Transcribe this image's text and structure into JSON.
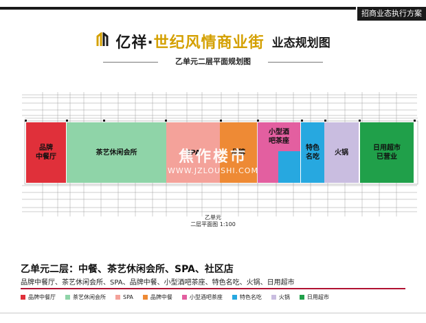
{
  "header": {
    "tag": "招商业态执行方案",
    "brand_prefix": "亿祥·",
    "brand_name": "世纪风情商业街",
    "brand_plan": "业态规划图",
    "subtitle": "乙单元二层平面规划图"
  },
  "plan": {
    "zones": [
      {
        "label": "品牌\n中餐厅",
        "color": "#e0303a"
      },
      {
        "label": "茶艺休闲会所",
        "color": "#8fd4a8"
      },
      {
        "label": "SPA",
        "color": "#f4a29a"
      },
      {
        "label": "品牌",
        "color": "#ee8a35"
      },
      {
        "label": "小型酒\n吧茶座",
        "color": "#e35fa0"
      },
      {
        "label": "特色\n名吃",
        "color": "#27a8e0"
      },
      {
        "label": "火锅",
        "color": "#c9bde0"
      },
      {
        "label": "日用超市\n已营业",
        "color": "#20a04a"
      }
    ],
    "watermark_cn": "焦作楼市",
    "watermark_en": "WWW.JZLOUSHI.COM",
    "caption_unit": "乙单元",
    "caption_plan": "二层平面图 1:100"
  },
  "summary": {
    "title": "乙单元二层：中餐、茶艺休闲会所、SPA、社区店",
    "list": "品牌中餐厅、茶艺休闲会所、SPA、品牌中餐、小型酒吧茶座、特色名吃、火锅、日用超市"
  },
  "legend": [
    {
      "label": "品牌中餐厅",
      "color": "#e0303a"
    },
    {
      "label": "茶艺休闲会所",
      "color": "#8fd4a8"
    },
    {
      "label": "SPA",
      "color": "#f4a29a"
    },
    {
      "label": "品牌中餐",
      "color": "#ee8a35"
    },
    {
      "label": "小型酒吧茶座",
      "color": "#e35fa0"
    },
    {
      "label": "特色名吃",
      "color": "#27a8e0"
    },
    {
      "label": "火锅",
      "color": "#c9bde0"
    },
    {
      "label": "日用超市",
      "color": "#20a04a"
    }
  ]
}
